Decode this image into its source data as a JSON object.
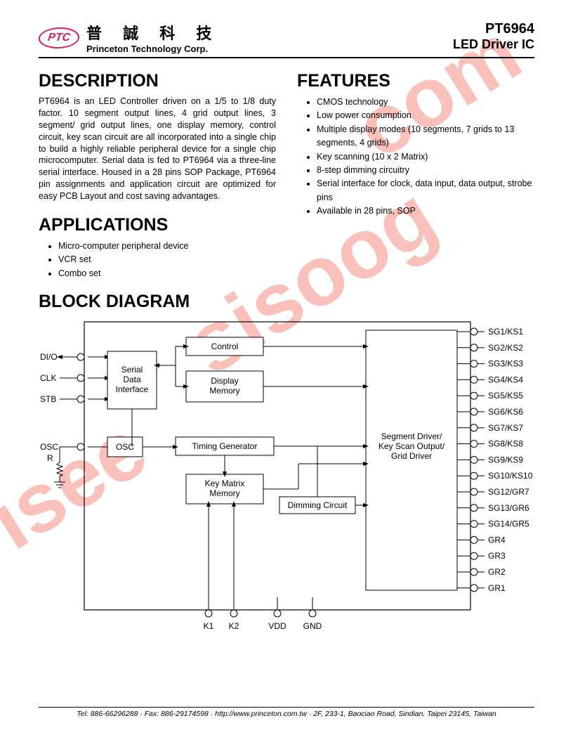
{
  "header": {
    "logo_text": "PTC",
    "cn_name": "普 誠 科 技",
    "corp_name": "Princeton Technology Corp.",
    "part_number": "PT6964",
    "part_desc": "LED Driver IC"
  },
  "watermark": {
    "w1": "isee",
    "w2": "sisoog",
    "w3": "com"
  },
  "sections": {
    "description": {
      "title": "DESCRIPTION",
      "body": "PT6964 is an LED Controller driven on a 1/5 to 1/8 duty factor. 10 segment output lines, 4 grid output lines, 3 segment/ grid output lines, one display memory, control circuit, key scan circuit are all incorporated into a single chip to build a highly reliable peripheral device for a single chip microcomputer. Serial data is fed to PT6964 via a three-line serial interface. Housed in a 28 pins SOP Package, PT6964 pin assignments and application circuit are optimized for easy PCB Layout and cost saving advantages."
    },
    "features": {
      "title": "FEATURES",
      "items": [
        "CMOS technology",
        "Low power consumption",
        "Multiple display modes (10 segments, 7 grids to 13 segments, 4 grids)",
        "Key scanning (10 x 2 Matrix)",
        "8-step dimming circuitry",
        "Serial interface for clock, data input, data output, strobe pins",
        "Available in 28 pins, SOP"
      ]
    },
    "applications": {
      "title": "APPLICATIONS",
      "items": [
        "Micro-computer peripheral device",
        "VCR set",
        "Combo set"
      ]
    },
    "block_diagram": {
      "title": "BLOCK DIAGRAM"
    }
  },
  "diagram": {
    "colors": {
      "stroke": "#000000",
      "fill": "#ffffff",
      "pin_circle_stroke": "#000000"
    },
    "left_pins": [
      "DI/O",
      "CLK",
      "STB",
      "OSC",
      "R"
    ],
    "blocks": {
      "serial": [
        "Serial",
        "Data",
        "Interface"
      ],
      "control": [
        "Control"
      ],
      "display_mem": [
        "Display",
        "Memory"
      ],
      "osc": [
        "OSC"
      ],
      "timing": [
        "Timing Generator"
      ],
      "key_mem": [
        "Key Matrix",
        "Memory"
      ],
      "dimming": [
        "Dimming Circuit"
      ],
      "segment_driver": [
        "Segment Driver/",
        "Key Scan Output/",
        "Grid Driver"
      ]
    },
    "bottom_pins": [
      "K1",
      "K2",
      "VDD",
      "GND"
    ],
    "right_pins": [
      "SG1/KS1",
      "SG2/KS2",
      "SG3/KS3",
      "SG4/KS4",
      "SG5/KS5",
      "SG6/KS6",
      "SG7/KS7",
      "SG8/KS8",
      "SG9/KS9",
      "SG10/KS10",
      "SG12/GR7",
      "SG13/GR6",
      "SG14/GR5",
      "GR4",
      "GR3",
      "GR2",
      "GR1"
    ]
  },
  "footer": {
    "text": "Tel: 886-66296288 · Fax: 886-29174598 · http://www.princeton.com.tw · 2F, 233-1, Baociao Road, Sindian, Taipei 23145, Taiwan"
  }
}
